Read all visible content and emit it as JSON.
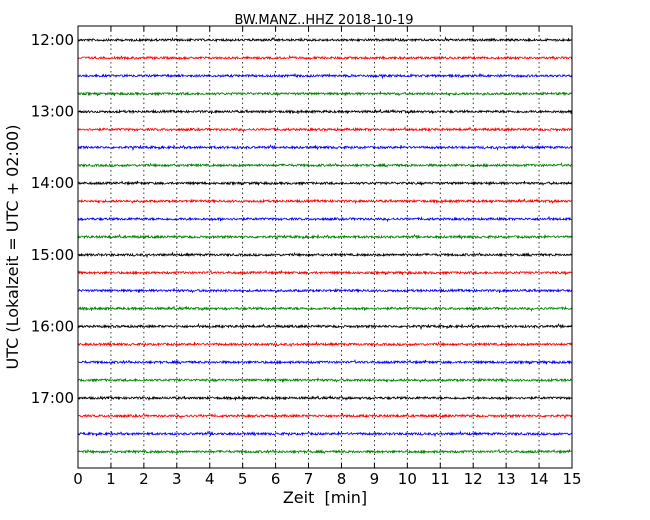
{
  "chart_data": {
    "type": "line",
    "title": "BW.MANZ..HHZ 2018-10-19",
    "xlabel": "Zeit  [min]",
    "ylabel": "UTC (Lokalzeit = UTC + 02:00)",
    "xlim": [
      0,
      15
    ],
    "x_ticks": [
      "0",
      "1",
      "2",
      "3",
      "4",
      "5",
      "6",
      "7",
      "8",
      "9",
      "10",
      "11",
      "12",
      "13",
      "14",
      "15"
    ],
    "y_ticks": [
      {
        "label": "12:00",
        "row": 0
      },
      {
        "label": "13:00",
        "row": 4
      },
      {
        "label": "14:00",
        "row": 8
      },
      {
        "label": "15:00",
        "row": 12
      },
      {
        "label": "16:00",
        "row": 16
      },
      {
        "label": "17:00",
        "row": 20
      }
    ],
    "grid": "x-dotted",
    "rows_per_hour": 4,
    "row_count": 24,
    "trace_colors": [
      "#000000",
      "#ff0000",
      "#0000ff",
      "#008000"
    ]
  }
}
